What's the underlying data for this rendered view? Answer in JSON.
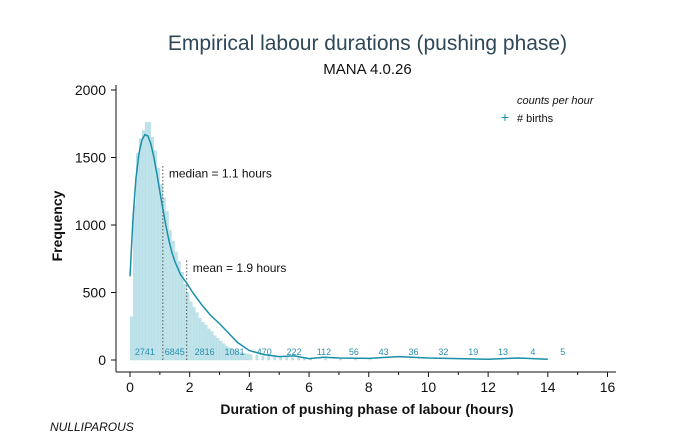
{
  "chart_data": {
    "type": "bar",
    "title": "Empirical labour durations (pushing phase)",
    "subtitle": "MANA 4.0.26",
    "xlabel": "Duration of pushing phase of labour (hours)",
    "ylabel": "Frequency",
    "xlim": [
      0,
      16
    ],
    "ylim": [
      0,
      2000
    ],
    "xticks": [
      0,
      2,
      4,
      6,
      8,
      10,
      12,
      14,
      16
    ],
    "yticks": [
      0,
      500,
      1000,
      1500,
      2000
    ],
    "grid": false,
    "legend": {
      "title": "counts per hour",
      "entries": [
        "# births"
      ],
      "placement": "top-right",
      "marker": "+"
    },
    "histogram": {
      "bin_width_hours": 0.1,
      "x_start": [
        0.0,
        0.1,
        0.2,
        0.3,
        0.4,
        0.5,
        0.6,
        0.7,
        0.8,
        0.9,
        1.0,
        1.1,
        1.2,
        1.3,
        1.4,
        1.5,
        1.6,
        1.7,
        1.8,
        1.9,
        2.0,
        2.1,
        2.2,
        2.3,
        2.4,
        2.5,
        2.6,
        2.7,
        2.8,
        2.9,
        3.0,
        3.1,
        3.2,
        3.3,
        3.4,
        3.5,
        3.6,
        3.7,
        3.8,
        3.9,
        4.0,
        4.2,
        4.4,
        4.6,
        4.8,
        5.0,
        5.2,
        5.4,
        5.6,
        5.8,
        6.0,
        6.5,
        7.0,
        7.5,
        8.0
      ],
      "values": [
        320,
        1150,
        1530,
        1640,
        1700,
        1760,
        1760,
        1650,
        1550,
        1420,
        1300,
        1200,
        1100,
        960,
        880,
        800,
        730,
        650,
        560,
        500,
        430,
        390,
        350,
        310,
        280,
        260,
        230,
        210,
        180,
        160,
        140,
        120,
        100,
        90,
        80,
        70,
        60,
        55,
        50,
        45,
        40,
        35,
        30,
        28,
        24,
        20,
        18,
        16,
        14,
        12,
        10,
        8,
        6,
        5,
        3
      ]
    },
    "density_curve": {
      "x": [
        0,
        0.1,
        0.2,
        0.3,
        0.4,
        0.5,
        0.6,
        0.7,
        0.8,
        0.9,
        1.0,
        1.1,
        1.2,
        1.3,
        1.4,
        1.5,
        1.7,
        1.9,
        2.1,
        2.4,
        2.7,
        3.0,
        3.3,
        3.6,
        4.0,
        4.5,
        5.0,
        5.5,
        6.0,
        6.5,
        7.0,
        8.0,
        9.0,
        10.0,
        11.0,
        12.0,
        13.0,
        14.0
      ],
      "y": [
        620,
        1050,
        1350,
        1530,
        1630,
        1670,
        1660,
        1600,
        1500,
        1380,
        1250,
        1120,
        1000,
        890,
        800,
        730,
        630,
        570,
        500,
        410,
        330,
        270,
        200,
        130,
        70,
        40,
        25,
        30,
        10,
        20,
        15,
        12,
        25,
        15,
        10,
        5,
        15,
        5
      ]
    },
    "hourly_counts": {
      "x": [
        0.5,
        1.5,
        2.5,
        3.5,
        4.5,
        5.5,
        6.5,
        7.5,
        8.5,
        9.5,
        10.5,
        11.5,
        12.5,
        13.5,
        14.5
      ],
      "labels": [
        "2741",
        "6845",
        "2816",
        "1081",
        "470",
        "222",
        "112",
        "56",
        "43",
        "36",
        "32",
        "19",
        "13",
        "4",
        "5"
      ]
    },
    "annotations": [
      {
        "text": "median =  1.1 hours",
        "x": 1.1,
        "y": 1380
      },
      {
        "text": "mean =  1.9 hours",
        "x": 1.9,
        "y": 680
      }
    ],
    "footnote": "NULLIPAROUS",
    "colors": {
      "line": "#1a8fa8",
      "bars": "#bfe3ea",
      "bar_edge": "#a9d7e1",
      "counts": "#2a8fb0",
      "title": "#2f4858",
      "vline": "#555555"
    }
  }
}
